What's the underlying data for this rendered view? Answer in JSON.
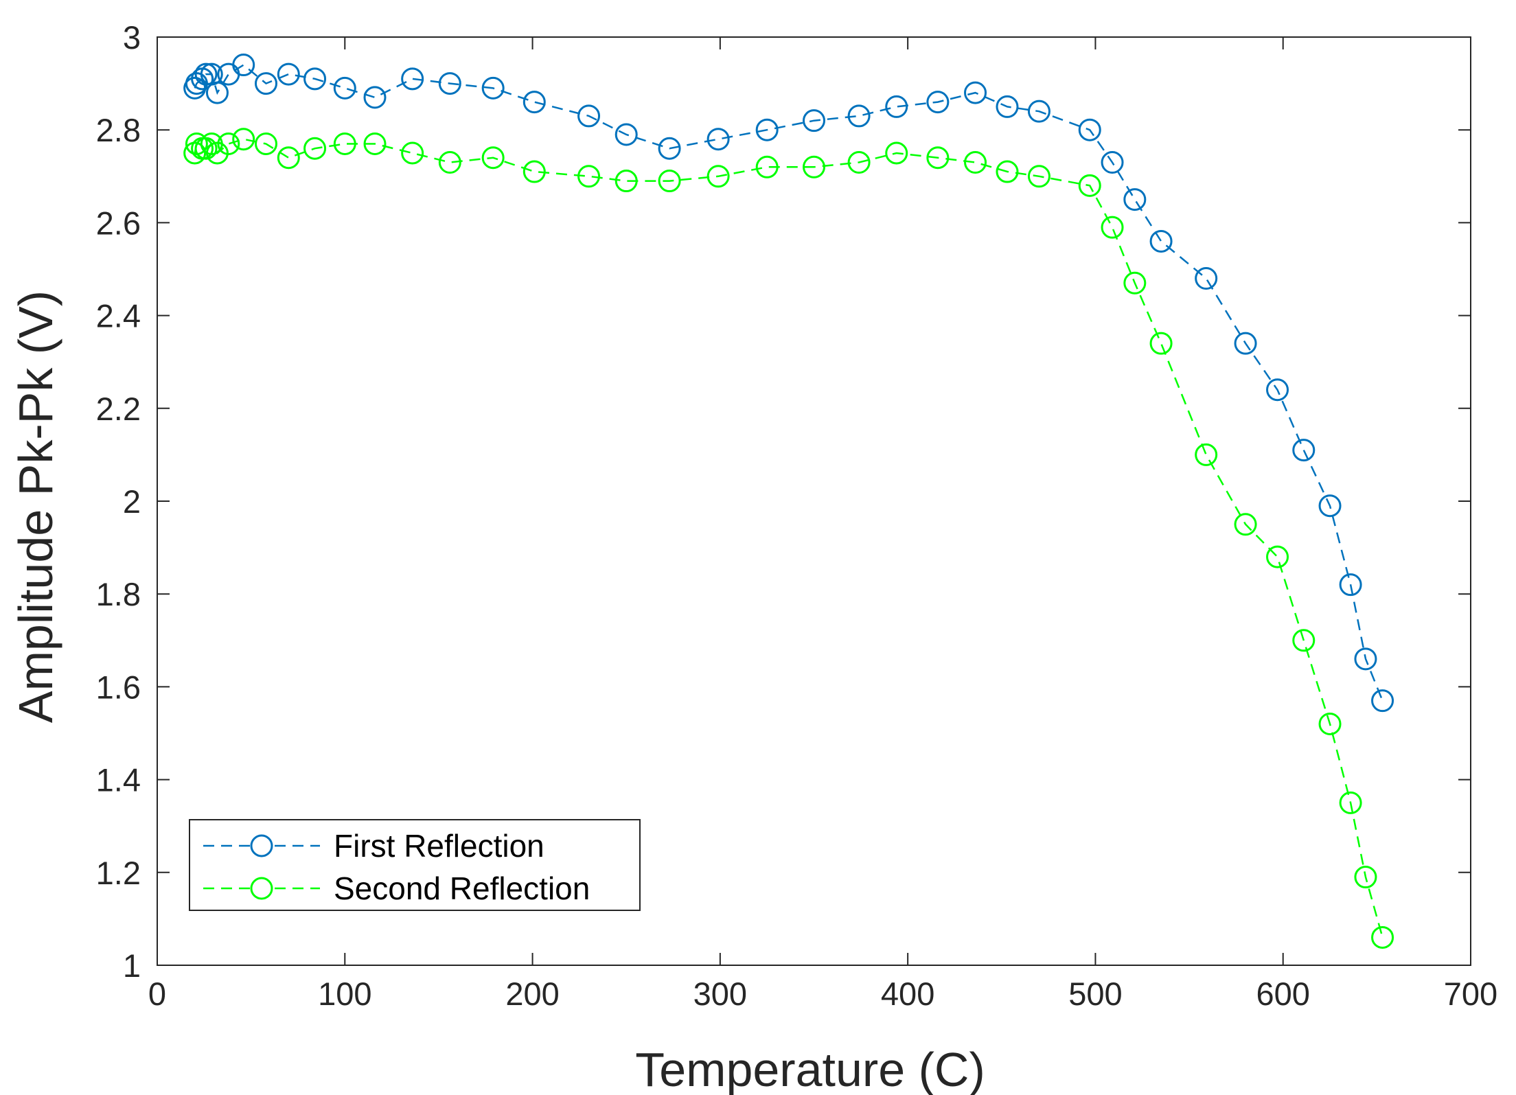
{
  "chart_data": {
    "type": "line",
    "title": "",
    "xlabel": "Temperature (C)",
    "ylabel": "Amplitude Pk-Pk (V)",
    "xlim": [
      0,
      700
    ],
    "ylim": [
      1,
      3
    ],
    "xticks": [
      0,
      100,
      200,
      300,
      400,
      500,
      600,
      700
    ],
    "yticks": [
      1,
      1.2,
      1.4,
      1.6,
      1.8,
      2,
      2.2,
      2.4,
      2.6,
      2.8,
      3
    ],
    "xtick_labels": [
      "0",
      "100",
      "200",
      "300",
      "400",
      "500",
      "600",
      "700"
    ],
    "ytick_labels": [
      "1",
      "1.2",
      "1.4",
      "1.6",
      "1.8",
      "2",
      "2.2",
      "2.4",
      "2.6",
      "2.8",
      "3"
    ],
    "grid": false,
    "legend_position": "bottom-left",
    "series": [
      {
        "name": "First Reflection",
        "color": "#0072BD",
        "line_style": "dashed",
        "marker": "circle",
        "points": [
          [
            20,
            2.89
          ],
          [
            21,
            2.9
          ],
          [
            24,
            2.91
          ],
          [
            26,
            2.92
          ],
          [
            29,
            2.92
          ],
          [
            32,
            2.88
          ],
          [
            38,
            2.92
          ],
          [
            46,
            2.94
          ],
          [
            58,
            2.9
          ],
          [
            70,
            2.92
          ],
          [
            84,
            2.91
          ],
          [
            100,
            2.89
          ],
          [
            116,
            2.87
          ],
          [
            136,
            2.91
          ],
          [
            156,
            2.9
          ],
          [
            179,
            2.89
          ],
          [
            201,
            2.86
          ],
          [
            230,
            2.83
          ],
          [
            250,
            2.79
          ],
          [
            273,
            2.76
          ],
          [
            299,
            2.78
          ],
          [
            325,
            2.8
          ],
          [
            350,
            2.82
          ],
          [
            374,
            2.83
          ],
          [
            394,
            2.85
          ],
          [
            416,
            2.86
          ],
          [
            436,
            2.88
          ],
          [
            453,
            2.85
          ],
          [
            470,
            2.84
          ],
          [
            497,
            2.8
          ],
          [
            509,
            2.73
          ],
          [
            521,
            2.65
          ],
          [
            535,
            2.56
          ],
          [
            559,
            2.48
          ],
          [
            580,
            2.34
          ],
          [
            597,
            2.24
          ],
          [
            611,
            2.11
          ],
          [
            625,
            1.99
          ],
          [
            636,
            1.82
          ],
          [
            644,
            1.66
          ],
          [
            653,
            1.57
          ]
        ]
      },
      {
        "name": "Second Reflection",
        "color": "#00FF00",
        "line_style": "dashed",
        "marker": "circle",
        "points": [
          [
            20,
            2.75
          ],
          [
            21,
            2.77
          ],
          [
            24,
            2.76
          ],
          [
            26,
            2.76
          ],
          [
            29,
            2.77
          ],
          [
            32,
            2.75
          ],
          [
            38,
            2.77
          ],
          [
            46,
            2.78
          ],
          [
            58,
            2.77
          ],
          [
            70,
            2.74
          ],
          [
            84,
            2.76
          ],
          [
            100,
            2.77
          ],
          [
            116,
            2.77
          ],
          [
            136,
            2.75
          ],
          [
            156,
            2.73
          ],
          [
            179,
            2.74
          ],
          [
            201,
            2.71
          ],
          [
            230,
            2.7
          ],
          [
            250,
            2.69
          ],
          [
            273,
            2.69
          ],
          [
            299,
            2.7
          ],
          [
            325,
            2.72
          ],
          [
            350,
            2.72
          ],
          [
            374,
            2.73
          ],
          [
            394,
            2.75
          ],
          [
            416,
            2.74
          ],
          [
            436,
            2.73
          ],
          [
            453,
            2.71
          ],
          [
            470,
            2.7
          ],
          [
            497,
            2.68
          ],
          [
            509,
            2.59
          ],
          [
            521,
            2.47
          ],
          [
            535,
            2.34
          ],
          [
            559,
            2.1
          ],
          [
            580,
            1.95
          ],
          [
            597,
            1.88
          ],
          [
            611,
            1.7
          ],
          [
            625,
            1.52
          ],
          [
            636,
            1.35
          ],
          [
            644,
            1.19
          ],
          [
            653,
            1.06
          ]
        ]
      }
    ]
  }
}
